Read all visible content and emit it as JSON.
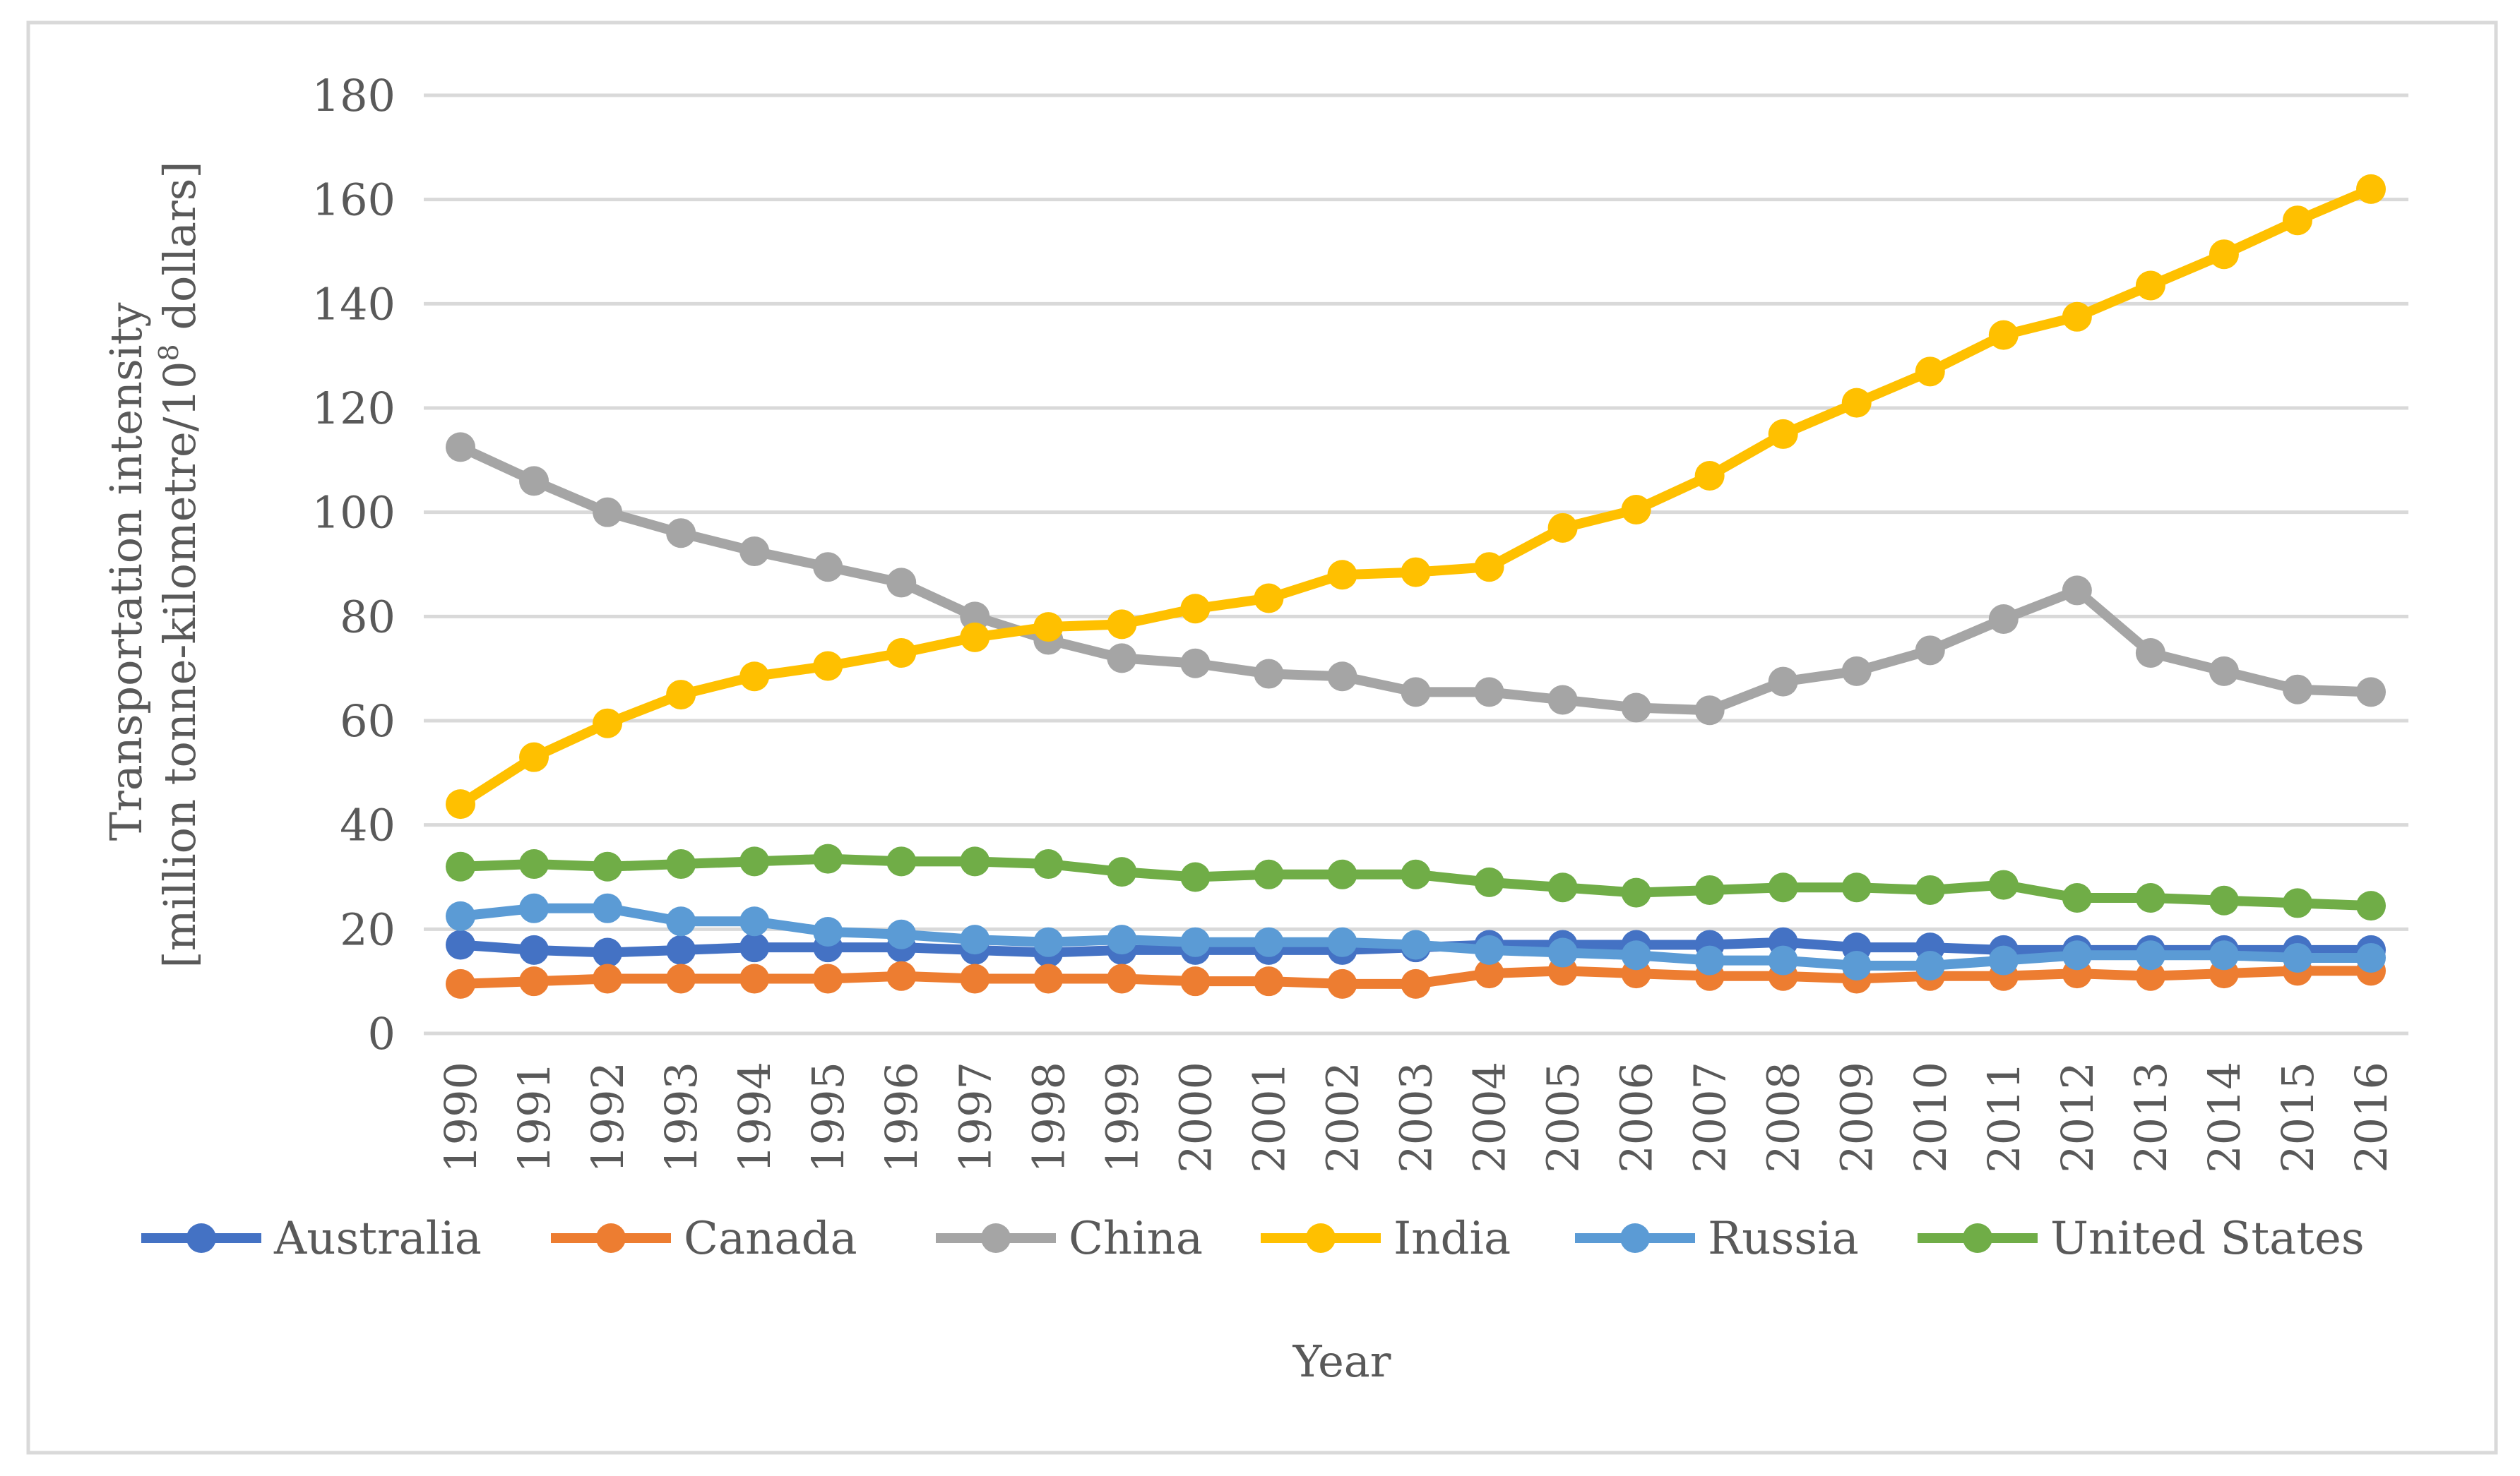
{
  "chart_data": {
    "type": "line",
    "title": "",
    "xlabel": "Year",
    "ylabel_lines": [
      "Transportation  intensity",
      "[million tonne-kilometre/10",
      "8",
      " dollars]"
    ],
    "ylim": [
      0,
      180
    ],
    "yticks": [
      0,
      20,
      40,
      60,
      80,
      100,
      120,
      140,
      160,
      180
    ],
    "grid": true,
    "legend_position": "bottom",
    "categories": [
      "1990",
      "1991",
      "1992",
      "1993",
      "1994",
      "1995",
      "1996",
      "1997",
      "1998",
      "1999",
      "2000",
      "2001",
      "2002",
      "2003",
      "2004",
      "2005",
      "2006",
      "2007",
      "2008",
      "2009",
      "2010",
      "2011",
      "2012",
      "2013",
      "2014",
      "2015",
      "2016"
    ],
    "series": [
      {
        "name": "Australia",
        "color": "#4472C4",
        "values": [
          17,
          16,
          15.5,
          16,
          16.5,
          16.5,
          16.5,
          16,
          15.5,
          16,
          16,
          16,
          16,
          16.5,
          17,
          17,
          17,
          17,
          17.5,
          16.5,
          16.5,
          16,
          16,
          16,
          16,
          16,
          16
        ]
      },
      {
        "name": "Canada",
        "color": "#ED7D31",
        "values": [
          9.5,
          10,
          10.5,
          10.5,
          10.5,
          10.5,
          11,
          10.5,
          10.5,
          10.5,
          10,
          10,
          9.5,
          9.5,
          11.5,
          12,
          11.5,
          11,
          11,
          10.5,
          11,
          11,
          11.5,
          11,
          11.5,
          12,
          12
        ]
      },
      {
        "name": "China",
        "color": "#A5A5A5",
        "values": [
          112.5,
          106,
          100,
          96,
          92.5,
          89.5,
          86.5,
          80,
          75.5,
          72,
          71,
          69,
          68.5,
          65.5,
          65.5,
          64,
          62.5,
          62,
          67.5,
          69.5,
          73.5,
          79.5,
          85,
          73,
          69.5,
          66,
          65.5
        ]
      },
      {
        "name": "India",
        "color": "#FFC000",
        "values": [
          44,
          53,
          59.5,
          65,
          68.5,
          70.5,
          73,
          76,
          78,
          78.5,
          81.5,
          83.5,
          88,
          88.5,
          89.5,
          97,
          100.5,
          107,
          115,
          121,
          127,
          134,
          137.5,
          143.5,
          149.5,
          156,
          162
        ]
      },
      {
        "name": "Russia",
        "color": "#5B9BD5",
        "values": [
          22.5,
          24,
          24,
          21.5,
          21.5,
          19.5,
          19,
          18,
          17.5,
          18,
          17.5,
          17.5,
          17.5,
          17,
          16,
          15.5,
          15,
          14,
          14,
          13,
          13,
          14,
          15,
          15,
          15,
          14.5,
          14.5
        ]
      },
      {
        "name": "United States",
        "color": "#70AD47",
        "values": [
          32,
          32.5,
          32,
          32.5,
          33,
          33.5,
          33,
          33,
          32.5,
          31,
          30,
          30.5,
          30.5,
          30.5,
          29,
          28,
          27,
          27.5,
          28,
          28,
          27.5,
          28.5,
          26,
          26,
          25.5,
          25,
          24.5
        ]
      }
    ]
  }
}
